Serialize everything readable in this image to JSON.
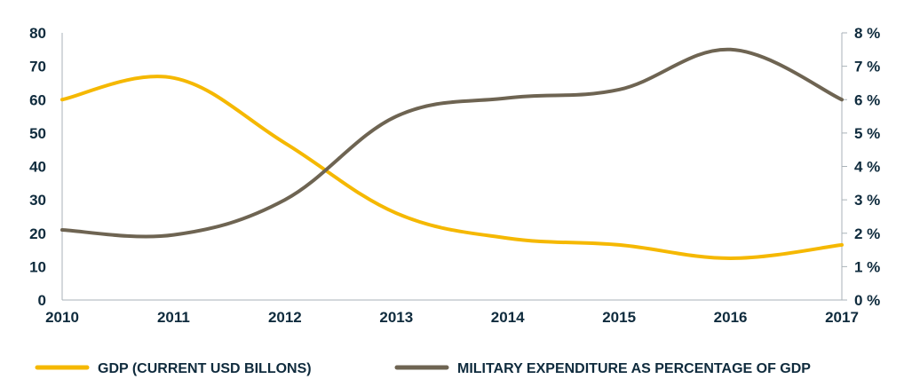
{
  "chart_data": {
    "type": "line",
    "x": [
      2010,
      2011,
      2012,
      2013,
      2014,
      2015,
      2016,
      2017
    ],
    "x_tick_labels": [
      "2010",
      "2011",
      "2012",
      "2013",
      "2014",
      "2015",
      "2016",
      "2017"
    ],
    "series": [
      {
        "name": "GDP (CURRENT USD BILLONS)",
        "axis": "left",
        "color": "#f5b800",
        "values": [
          60,
          66.5,
          47,
          26,
          18.5,
          16.5,
          12.5,
          16.5
        ]
      },
      {
        "name": "MILITARY EXPENDITURE AS PERCENTAGE OF GDP",
        "axis": "right",
        "color": "#6e6452",
        "values": [
          2.1,
          1.95,
          3.0,
          5.5,
          6.05,
          6.3,
          7.5,
          6.0
        ]
      }
    ],
    "y_left": {
      "range": [
        0,
        80
      ],
      "ticks": [
        0,
        10,
        20,
        30,
        40,
        50,
        60,
        70,
        80
      ],
      "tick_labels": [
        "0",
        "10",
        "20",
        "30",
        "40",
        "50",
        "60",
        "70",
        "80"
      ]
    },
    "y_right": {
      "range": [
        0,
        8
      ],
      "ticks": [
        0,
        1,
        2,
        3,
        4,
        5,
        6,
        7,
        8
      ],
      "tick_labels": [
        "0 %",
        "1 %",
        "2 %",
        "3 %",
        "4 %",
        "5 %",
        "6 %",
        "7 %",
        "8 %"
      ]
    },
    "title": "",
    "xlabel": "",
    "ylabel": "",
    "grid": false,
    "legend_position": "bottom"
  },
  "colors": {
    "axis": "#a9b2b8",
    "text": "#0f2b3d",
    "gdp": "#f5b800",
    "military": "#6e6452"
  }
}
